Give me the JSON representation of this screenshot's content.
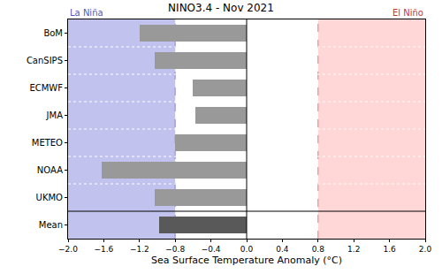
{
  "chart_data": {
    "type": "bar",
    "orientation": "horizontal",
    "title": "NINO3.4 - Nov 2021",
    "x_label": "Sea Surface Temperature Anomaly (°C)",
    "categories": [
      "BoM",
      "CanSIPS",
      "ECMWF",
      "JMA",
      "METEO",
      "NOAA",
      "UKMO",
      "Mean"
    ],
    "values": [
      -1.2,
      -1.03,
      -0.6,
      -0.57,
      -0.8,
      -1.62,
      -1.03,
      -0.98
    ],
    "colors": [
      "#999999",
      "#999999",
      "#999999",
      "#999999",
      "#999999",
      "#999999",
      "#999999",
      "#595959"
    ],
    "xlim": [
      -2.0,
      2.0
    ],
    "xticks": [
      {
        "value": -2.0,
        "label": "−2.0"
      },
      {
        "value": -1.6,
        "label": "−1.6"
      },
      {
        "value": -1.2,
        "label": "−1.2"
      },
      {
        "value": -0.8,
        "label": "−0.8"
      },
      {
        "value": -0.4,
        "label": "−0.4"
      },
      {
        "value": 0,
        "label": "0.0"
      },
      0.4,
      0.8,
      1.2,
      1.6,
      {
        "value": 2.0,
        "label": "2.0"
      }
    ],
    "grid": false,
    "regions": [
      {
        "label": "La Niña",
        "from": -2.0,
        "to": -0.8,
        "color": "#c2c2ef"
      },
      {
        "label": "El Niño",
        "from": 0.8,
        "to": 2.0,
        "color": "#ffd7d7"
      }
    ],
    "region_label_colors": [
      "#5555bb",
      "#cc3333"
    ]
  }
}
